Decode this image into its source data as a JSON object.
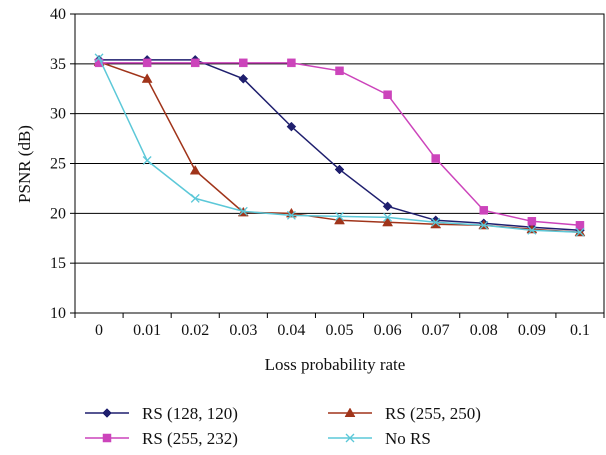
{
  "chart_data": {
    "type": "line",
    "title": "",
    "xlabel": "Loss probability rate",
    "ylabel": "PSNR (dB)",
    "x": [
      0,
      0.01,
      0.02,
      0.03,
      0.04,
      0.05,
      0.06,
      0.07,
      0.08,
      0.09,
      0.1
    ],
    "x_tick_labels": [
      "0",
      "0.01",
      "0.02",
      "0.03",
      "0.04",
      "0.05",
      "0.06",
      "0.07",
      "0.08",
      "0.09",
      "0.1"
    ],
    "ylim": [
      10,
      40
    ],
    "y_ticks": [
      10,
      15,
      20,
      25,
      30,
      35,
      40
    ],
    "y_tick_labels": [
      "10",
      "15",
      "20",
      "25",
      "30",
      "35",
      "40"
    ],
    "grid": "horizontal",
    "legend_position": "bottom",
    "series": [
      {
        "name": "RS (128, 120)",
        "color": "#1f1f6e",
        "marker": "diamond",
        "values": [
          35.4,
          35.4,
          35.4,
          33.5,
          28.7,
          24.4,
          20.7,
          19.3,
          19.0,
          18.6,
          18.3
        ]
      },
      {
        "name": "RS (255, 250)",
        "color": "#a0341a",
        "marker": "triangle",
        "values": [
          35.2,
          33.5,
          24.3,
          20.1,
          20.0,
          19.3,
          19.1,
          18.9,
          18.8,
          18.4,
          18.1
        ]
      },
      {
        "name": "RS (255, 232)",
        "color": "#cc44bb",
        "marker": "square",
        "values": [
          35.1,
          35.1,
          35.1,
          35.1,
          35.1,
          34.3,
          31.9,
          25.5,
          20.3,
          19.2,
          18.8
        ]
      },
      {
        "name": "No RS",
        "color": "#5cc8d8",
        "marker": "x",
        "values": [
          35.6,
          25.3,
          21.5,
          20.2,
          19.8,
          19.7,
          19.6,
          19.1,
          18.8,
          18.3,
          18.1
        ]
      }
    ]
  }
}
